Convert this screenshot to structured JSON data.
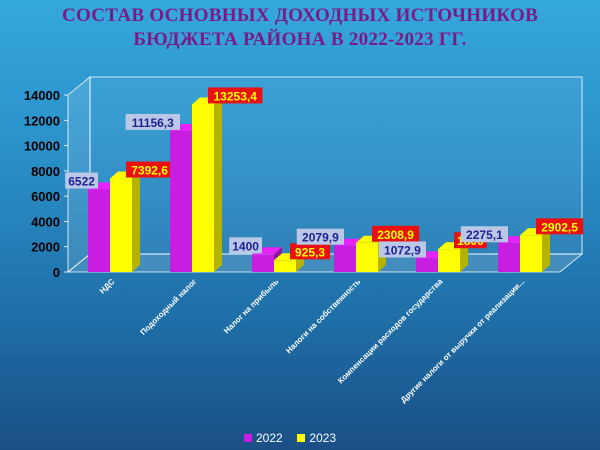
{
  "title_line1": "СОСТАВ ОСНОВНЫХ ДОХОДНЫХ ИСТОЧНИКОВ",
  "title_line2": "БЮДЖЕТА РАЙОНА В 2022-2023 ГГ.",
  "chart_data": {
    "type": "bar",
    "title": "СОСТАВ ОСНОВНЫХ ДОХОДНЫХ ИСТОЧНИКОВ БЮДЖЕТА РАЙОНА В 2022-2023 ГГ.",
    "categories": [
      "НДС",
      "Подоходный налог",
      "Налог на прибыль",
      "Налоги на собственность",
      "Компенсации расходов государства",
      "Другие налоги от выручки от реализации..."
    ],
    "series": [
      {
        "name": "2022",
        "color": "#c81ee0",
        "values": [
          6522,
          11156.3,
          1400,
          2079.9,
          1072.9,
          2275.1
        ],
        "labels": [
          "6522",
          "11156,3",
          "1400",
          "2079,9",
          "1072,9",
          "2275,1"
        ]
      },
      {
        "name": "2023",
        "color": "#ffff00",
        "values": [
          7392.6,
          13253.4,
          925.3,
          2308.9,
          1800,
          2902.5
        ],
        "labels": [
          "7392,6",
          "13253,4",
          "925,3",
          "2308,9",
          "1800",
          "2902,5"
        ]
      }
    ],
    "ylim": [
      0,
      14000
    ],
    "yticks": [
      0,
      2000,
      4000,
      6000,
      8000,
      10000,
      12000,
      14000
    ],
    "grid": false,
    "legend_position": "bottom",
    "label_colors": {
      "series1_box": "#b9c8e6",
      "series1_text": "#1f1f8f",
      "series2_box": "#e81010",
      "series2_text": "#ffff00"
    }
  }
}
